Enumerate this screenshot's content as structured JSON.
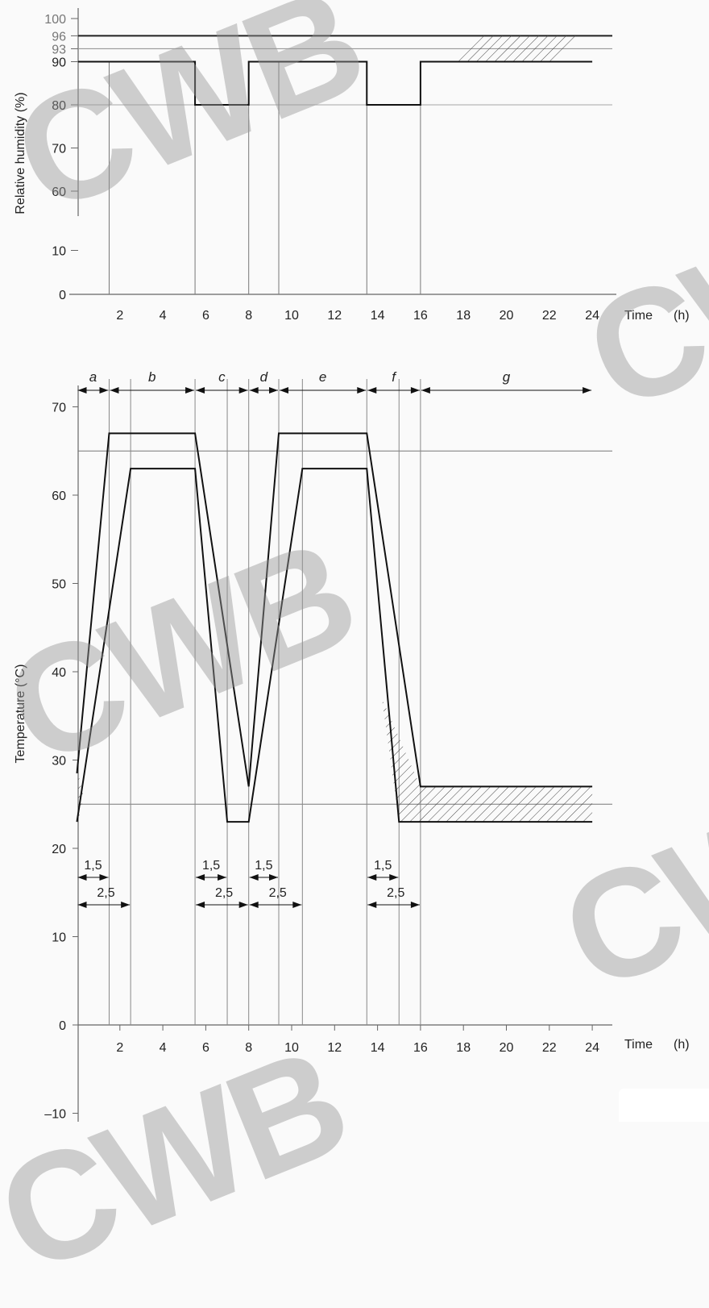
{
  "chart_data": [
    {
      "type": "line",
      "ylabel": "Relative humidity   (%)",
      "xlabel": "Time   (h)",
      "x_label_text": "Time",
      "x_unit_text": "(h)",
      "xlim": [
        -0.5,
        24.5
      ],
      "x_ticks": [
        "2",
        "4",
        "6",
        "8",
        "10",
        "12",
        "14",
        "16",
        "18",
        "20",
        "22",
        "24"
      ],
      "y_ticks": [
        "0",
        "10",
        "60",
        "70",
        "80",
        "90",
        "93",
        "96",
        "100"
      ],
      "axis_break_between": [
        10,
        60
      ],
      "reference_lines": [
        93,
        96
      ],
      "series": [
        {
          "x": [
            1.5,
            5.5,
            5.5,
            8,
            8,
            13.5,
            13.5,
            16,
            16,
            24
          ],
          "y": [
            90,
            90,
            80,
            80,
            90,
            90,
            80,
            80,
            90,
            90
          ]
        }
      ],
      "vertical_markers": [
        1.5,
        5.5,
        8,
        9.4,
        13.5,
        16
      ],
      "hatched_band": {
        "from": [
          18,
          96
        ],
        "to": [
          22.5,
          90
        ]
      }
    },
    {
      "type": "line",
      "ylabel": "Temperature   (°C)",
      "x_label_text": "Time",
      "x_unit_text": "(h)",
      "xlim": [
        -0.5,
        24.5
      ],
      "x_ticks": [
        "2",
        "4",
        "6",
        "8",
        "10",
        "12",
        "14",
        "16",
        "18",
        "20",
        "22",
        "24"
      ],
      "y_ticks": [
        "–10",
        "0",
        "10",
        "20",
        "30",
        "40",
        "50",
        "60",
        "70"
      ],
      "reference_lines": [
        25,
        65
      ],
      "series": [
        {
          "x": [
            0,
            1.5,
            5.5,
            8,
            9.4,
            13.5,
            16,
            24
          ],
          "y": [
            28.5,
            67,
            67,
            27,
            67,
            67,
            27,
            27
          ]
        },
        {
          "x": [
            0,
            2.5,
            5.5,
            7,
            8,
            10.5,
            13.5,
            15,
            24
          ],
          "y": [
            23,
            63,
            63,
            23,
            23,
            63,
            63,
            23,
            23
          ]
        }
      ],
      "vertical_markers": [
        1.5,
        2.5,
        5.5,
        7,
        8,
        9.4,
        10.5,
        13.5,
        15,
        16
      ],
      "phase_labels": [
        "a",
        "b",
        "c",
        "d",
        "e",
        "f",
        "g"
      ],
      "phase_bounds": [
        0,
        1.5,
        5.5,
        8,
        9.4,
        13.5,
        16,
        24
      ],
      "durations": [
        {
          "label": "1,5",
          "from": 0,
          "to": 1.5
        },
        {
          "label": "2,5",
          "from": 0,
          "to": 2.5
        },
        {
          "label": "1,5",
          "from": 5.5,
          "to": 7
        },
        {
          "label": "2,5",
          "from": 5.5,
          "to": 8
        },
        {
          "label": "1,5",
          "from": 8,
          "to": 9.4
        },
        {
          "label": "2,5",
          "from": 8,
          "to": 10.5
        },
        {
          "label": "1,5",
          "from": 13.5,
          "to": 15
        },
        {
          "label": "2,5",
          "from": 13.5,
          "to": 16
        }
      ]
    }
  ],
  "watermark": "CWB",
  "watermark_color": "#969696"
}
